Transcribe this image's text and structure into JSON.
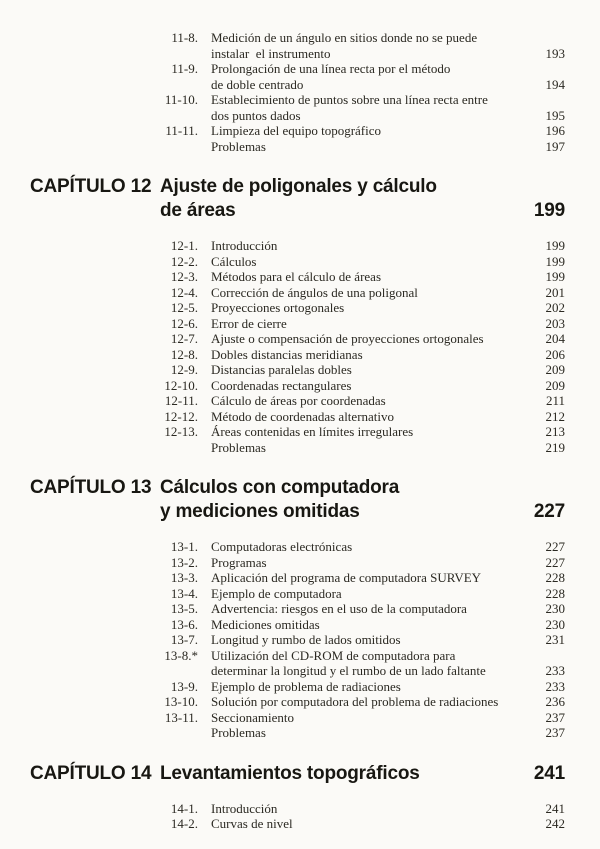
{
  "page": {
    "background": "#fbfaf7",
    "ink_color": "#2b2922",
    "heading_color": "#181712",
    "sections": [
      {
        "kind": "items",
        "name": "chapter-11-items-continued",
        "items": [
          {
            "num": "11-8.",
            "lines": [
              "Medición de un ángulo en sitios donde no se puede",
              "instalar  el instrumento"
            ],
            "page": "193"
          },
          {
            "num": "11-9.",
            "lines": [
              "Prolongación de una línea recta por el método",
              "de doble centrado"
            ],
            "page": "194"
          },
          {
            "num": "11-10.",
            "lines": [
              "Establecimiento de puntos sobre una línea recta entre",
              "dos puntos dados"
            ],
            "page": "195"
          },
          {
            "num": "11-11.",
            "lines": [
              "Limpieza del equipo topográfico"
            ],
            "page": "196"
          },
          {
            "num": "",
            "lines": [
              "Problemas"
            ],
            "page": "197"
          }
        ]
      },
      {
        "kind": "chapter",
        "name": "chapter-12-heading",
        "label": "CAPÍTULO 12",
        "title_lines": [
          "Ajuste de poligonales y cálculo",
          "de áreas"
        ],
        "page": "199"
      },
      {
        "kind": "items",
        "name": "chapter-12-items",
        "items": [
          {
            "num": "12-1.",
            "lines": [
              "Introducción"
            ],
            "page": "199"
          },
          {
            "num": "12-2.",
            "lines": [
              "Cálculos"
            ],
            "page": "199"
          },
          {
            "num": "12-3.",
            "lines": [
              "Métodos para el cálculo de áreas"
            ],
            "page": "199"
          },
          {
            "num": "12-4.",
            "lines": [
              "Corrección de ángulos de una poligonal"
            ],
            "page": "201"
          },
          {
            "num": "12-5.",
            "lines": [
              "Proyecciones ortogonales"
            ],
            "page": "202"
          },
          {
            "num": "12-6.",
            "lines": [
              "Error de cierre"
            ],
            "page": "203"
          },
          {
            "num": "12-7.",
            "lines": [
              "Ajuste o compensación de proyecciones ortogonales"
            ],
            "page": "204"
          },
          {
            "num": "12-8.",
            "lines": [
              "Dobles distancias meridianas"
            ],
            "page": "206"
          },
          {
            "num": "12-9.",
            "lines": [
              "Distancias paralelas dobles"
            ],
            "page": "209"
          },
          {
            "num": "12-10.",
            "lines": [
              "Coordenadas rectangulares"
            ],
            "page": "209"
          },
          {
            "num": "12-11.",
            "lines": [
              "Cálculo de áreas por coordenadas"
            ],
            "page": "211"
          },
          {
            "num": "12-12.",
            "lines": [
              "Método de coordenadas alternativo"
            ],
            "page": "212"
          },
          {
            "num": "12-13.",
            "lines": [
              "Áreas contenidas en límites irregulares"
            ],
            "page": "213"
          },
          {
            "num": "",
            "lines": [
              "Problemas"
            ],
            "page": "219"
          }
        ]
      },
      {
        "kind": "chapter",
        "name": "chapter-13-heading",
        "label": "CAPÍTULO 13",
        "title_lines": [
          "Cálculos con computadora",
          "y mediciones omitidas"
        ],
        "page": "227"
      },
      {
        "kind": "items",
        "name": "chapter-13-items",
        "items": [
          {
            "num": "13-1.",
            "lines": [
              "Computadoras electrónicas"
            ],
            "page": "227"
          },
          {
            "num": "13-2.",
            "lines": [
              "Programas"
            ],
            "page": "227"
          },
          {
            "num": "13-3.",
            "lines": [
              "Aplicación del programa de computadora SURVEY"
            ],
            "page": "228"
          },
          {
            "num": "13-4.",
            "lines": [
              "Ejemplo de computadora"
            ],
            "page": "228"
          },
          {
            "num": "13-5.",
            "lines": [
              "Advertencia: riesgos en el uso de la computadora"
            ],
            "page": "230"
          },
          {
            "num": "13-6.",
            "lines": [
              "Mediciones omitidas"
            ],
            "page": "230"
          },
          {
            "num": "13-7.",
            "lines": [
              "Longitud y rumbo de lados omitidos"
            ],
            "page": "231"
          },
          {
            "num": "13-8.*",
            "lines": [
              "Utilización del CD-ROM de computadora para",
              "determinar la longitud y el rumbo de un lado faltante"
            ],
            "page": "233"
          },
          {
            "num": "13-9.",
            "lines": [
              "Ejemplo de problema de radiaciones"
            ],
            "page": "233"
          },
          {
            "num": "13-10.",
            "lines": [
              "Solución por computadora del problema de radiaciones"
            ],
            "page": "236"
          },
          {
            "num": "13-11.",
            "lines": [
              "Seccionamiento"
            ],
            "page": "237"
          },
          {
            "num": "",
            "lines": [
              "Problemas"
            ],
            "page": "237"
          }
        ]
      },
      {
        "kind": "chapter",
        "name": "chapter-14-heading",
        "label": "CAPÍTULO 14",
        "title_lines": [
          "Levantamientos topográficos"
        ],
        "page": "241"
      },
      {
        "kind": "items",
        "name": "chapter-14-items",
        "items": [
          {
            "num": "14-1.",
            "lines": [
              "Introducción"
            ],
            "page": "241"
          },
          {
            "num": "14-2.",
            "lines": [
              "Curvas de nivel"
            ],
            "page": "242"
          }
        ]
      }
    ]
  }
}
